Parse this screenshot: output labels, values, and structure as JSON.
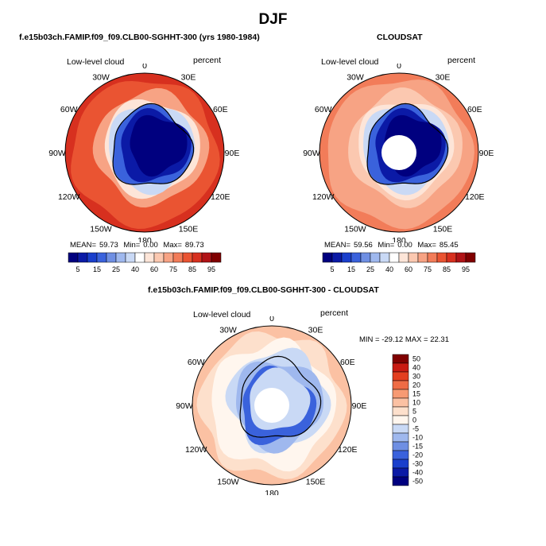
{
  "main_title": "DJF",
  "colors": {
    "continuous_scale": [
      "#00007f",
      "#0b1aa6",
      "#1a3fcc",
      "#3a62dc",
      "#6f8fe3",
      "#9fb8ee",
      "#c9d9f5",
      "#ffffff",
      "#fde5d8",
      "#fbc8b0",
      "#f7a384",
      "#f27c59",
      "#ea5432",
      "#d7301f",
      "#b01316",
      "#800000"
    ],
    "diff_scale": [
      "#00007f",
      "#0b1aa6",
      "#1a3fcc",
      "#3a62dc",
      "#6f8fe3",
      "#9fb8ee",
      "#c9d9f5",
      "#fff6ee",
      "#fde0cc",
      "#fbc1a3",
      "#f79a73",
      "#ef6c45",
      "#e33e1f",
      "#c81a12",
      "#800000"
    ],
    "coastline": "#000000"
  },
  "chart_data": [
    {
      "type": "heatmap",
      "projection": "south-polar-stereographic",
      "title": "f.e15b03ch.FAMIP.f09_f09.CLB00-SGHHT-300 (yrs 1980-1984)",
      "left_label": "Low-level cloud",
      "right_label": "percent",
      "longitude_labels": [
        "0",
        "30E",
        "60E",
        "90E",
        "120E",
        "150E",
        "180",
        "150W",
        "120W",
        "90W",
        "60W",
        "30W"
      ],
      "stats": {
        "mean_label": "MEAN=",
        "mean": "59.73",
        "min_label": "Min=",
        "min": "0.00",
        "max_label": "Max=",
        "max": "89.73"
      },
      "colorbar_ticks": [
        "5",
        "15",
        "25",
        "40",
        "60",
        "75",
        "85",
        "95"
      ],
      "zonal_mean_percent": {
        "antarctic_plateau": 5,
        "coast": 40,
        "sea_ice_zone": 70,
        "southern_ocean": 85
      },
      "polar_gap": false
    },
    {
      "type": "heatmap",
      "projection": "south-polar-stereographic",
      "title": "CLOUDSAT",
      "left_label": "Low-level cloud",
      "right_label": "percent",
      "longitude_labels": [
        "0",
        "30E",
        "60E",
        "90E",
        "120E",
        "150E",
        "180",
        "150W",
        "120W",
        "90W",
        "60W",
        "30W"
      ],
      "stats": {
        "mean_label": "MEAN=",
        "mean": "59.56",
        "min_label": "Min=",
        "min": "0.00",
        "max_label": "Max=",
        "max": "85.45"
      },
      "colorbar_ticks": [
        "5",
        "15",
        "25",
        "40",
        "60",
        "75",
        "85",
        "95"
      ],
      "zonal_mean_percent": {
        "antarctic_plateau": 5,
        "coast": 30,
        "sea_ice_zone": 65,
        "southern_ocean": 80
      },
      "polar_gap": true
    },
    {
      "type": "heatmap",
      "projection": "south-polar-stereographic",
      "title": "f.e15b03ch.FAMIP.f09_f09.CLB00-SGHHT-300 - CLOUDSAT",
      "left_label": "Low-level cloud",
      "right_label": "percent",
      "longitude_labels": [
        "0",
        "30E",
        "60E",
        "90E",
        "120E",
        "150E",
        "180",
        "150W",
        "120W",
        "90W",
        "60W",
        "30W"
      ],
      "minmax_label": "MIN = -29.12 MAX =  22.31",
      "min": -29.12,
      "max": 22.31,
      "colorbar_ticks": [
        "50",
        "40",
        "30",
        "20",
        "15",
        "10",
        "5",
        "0",
        "-5",
        "-10",
        "-15",
        "-20",
        "-30",
        "-40",
        "-50"
      ],
      "polar_gap": true
    }
  ]
}
